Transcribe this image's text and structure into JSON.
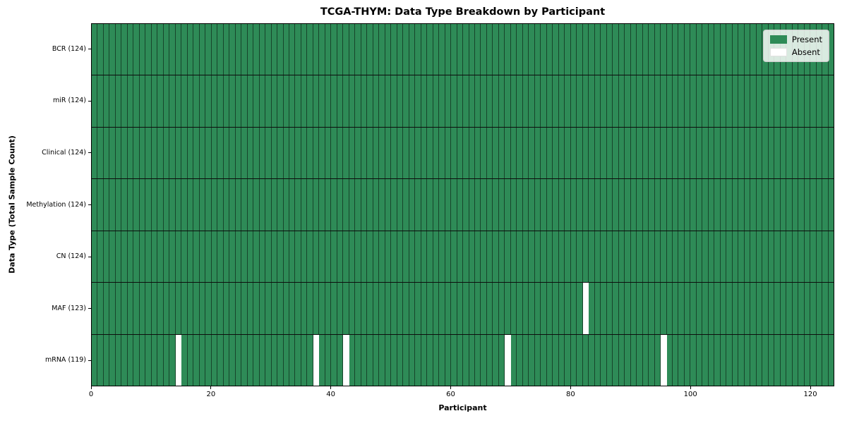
{
  "chart_data": {
    "type": "heatmap",
    "title": "TCGA-THYM: Data Type Breakdown by Participant",
    "xlabel": "Participant",
    "ylabel": "Data Type (Total Sample Count)",
    "x_ticks": [
      0,
      20,
      40,
      60,
      80,
      100,
      120
    ],
    "xlim": [
      0,
      124
    ],
    "n_participants": 124,
    "grid": false,
    "legend_position": "upper right",
    "legend": [
      {
        "label": "Present",
        "color": "#2e8b57"
      },
      {
        "label": "Absent",
        "color": "#ffffff"
      }
    ],
    "colors": {
      "present": "#2e8b57",
      "absent": "#ffffff",
      "cell_edge": "rgba(0,0,0,0.5)",
      "row_divider": "#0d0d0d",
      "spine": "#000000"
    },
    "rows": [
      {
        "label": "BCR (124)",
        "data_type": "BCR",
        "present_count": 124,
        "absent_participants": []
      },
      {
        "label": "miR (124)",
        "data_type": "miR",
        "present_count": 124,
        "absent_participants": []
      },
      {
        "label": "Clinical (124)",
        "data_type": "Clinical",
        "present_count": 124,
        "absent_participants": []
      },
      {
        "label": "Methylation (124)",
        "data_type": "Methylation",
        "present_count": 124,
        "absent_participants": []
      },
      {
        "label": "CN (124)",
        "data_type": "CN",
        "present_count": 124,
        "absent_participants": []
      },
      {
        "label": "MAF (123)",
        "data_type": "MAF",
        "present_count": 123,
        "absent_participants": [
          82
        ]
      },
      {
        "label": "mRNA (119)",
        "data_type": "mRNA",
        "present_count": 119,
        "absent_participants": [
          14,
          37,
          42,
          69,
          95
        ]
      }
    ]
  }
}
